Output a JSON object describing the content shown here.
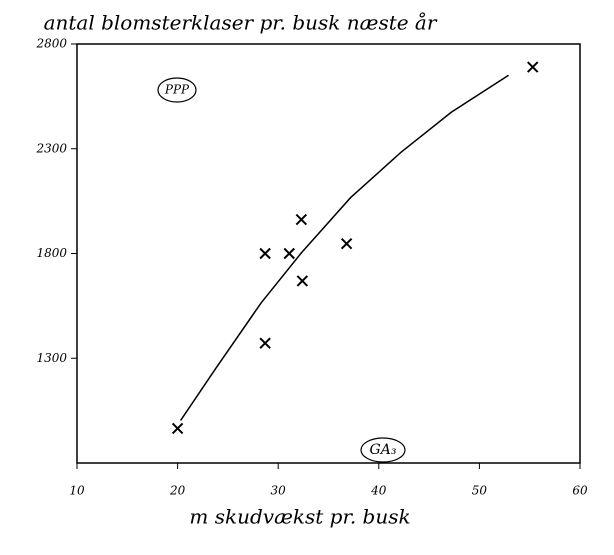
{
  "chart_data": {
    "type": "scatter",
    "title": "antal blomsterklaser pr. busk næste år",
    "x_label": "m skudvækst pr. busk",
    "annotations": [
      "PPP",
      "GA₃"
    ],
    "x": [
      20,
      28.7,
      28.7,
      31.1,
      32.3,
      32.4,
      36.8,
      55.3
    ],
    "values": [
      965,
      1372,
      1800,
      1800,
      1962,
      1669,
      1847,
      2690
    ],
    "curve": {
      "x": [
        20.3,
        23.8,
        28.3,
        32.3,
        37.2,
        42.2,
        47.2,
        52.9
      ],
      "values": [
        1003,
        1252,
        1564,
        1803,
        2067,
        2283,
        2474,
        2651
      ]
    },
    "color": "#000000",
    "xlim": [
      10,
      60
    ],
    "xticks": [
      10,
      20,
      30,
      40,
      50,
      60
    ],
    "ylim": [
      800,
      2800
    ],
    "yticks": [
      1300,
      1800,
      2300,
      2800
    ]
  }
}
